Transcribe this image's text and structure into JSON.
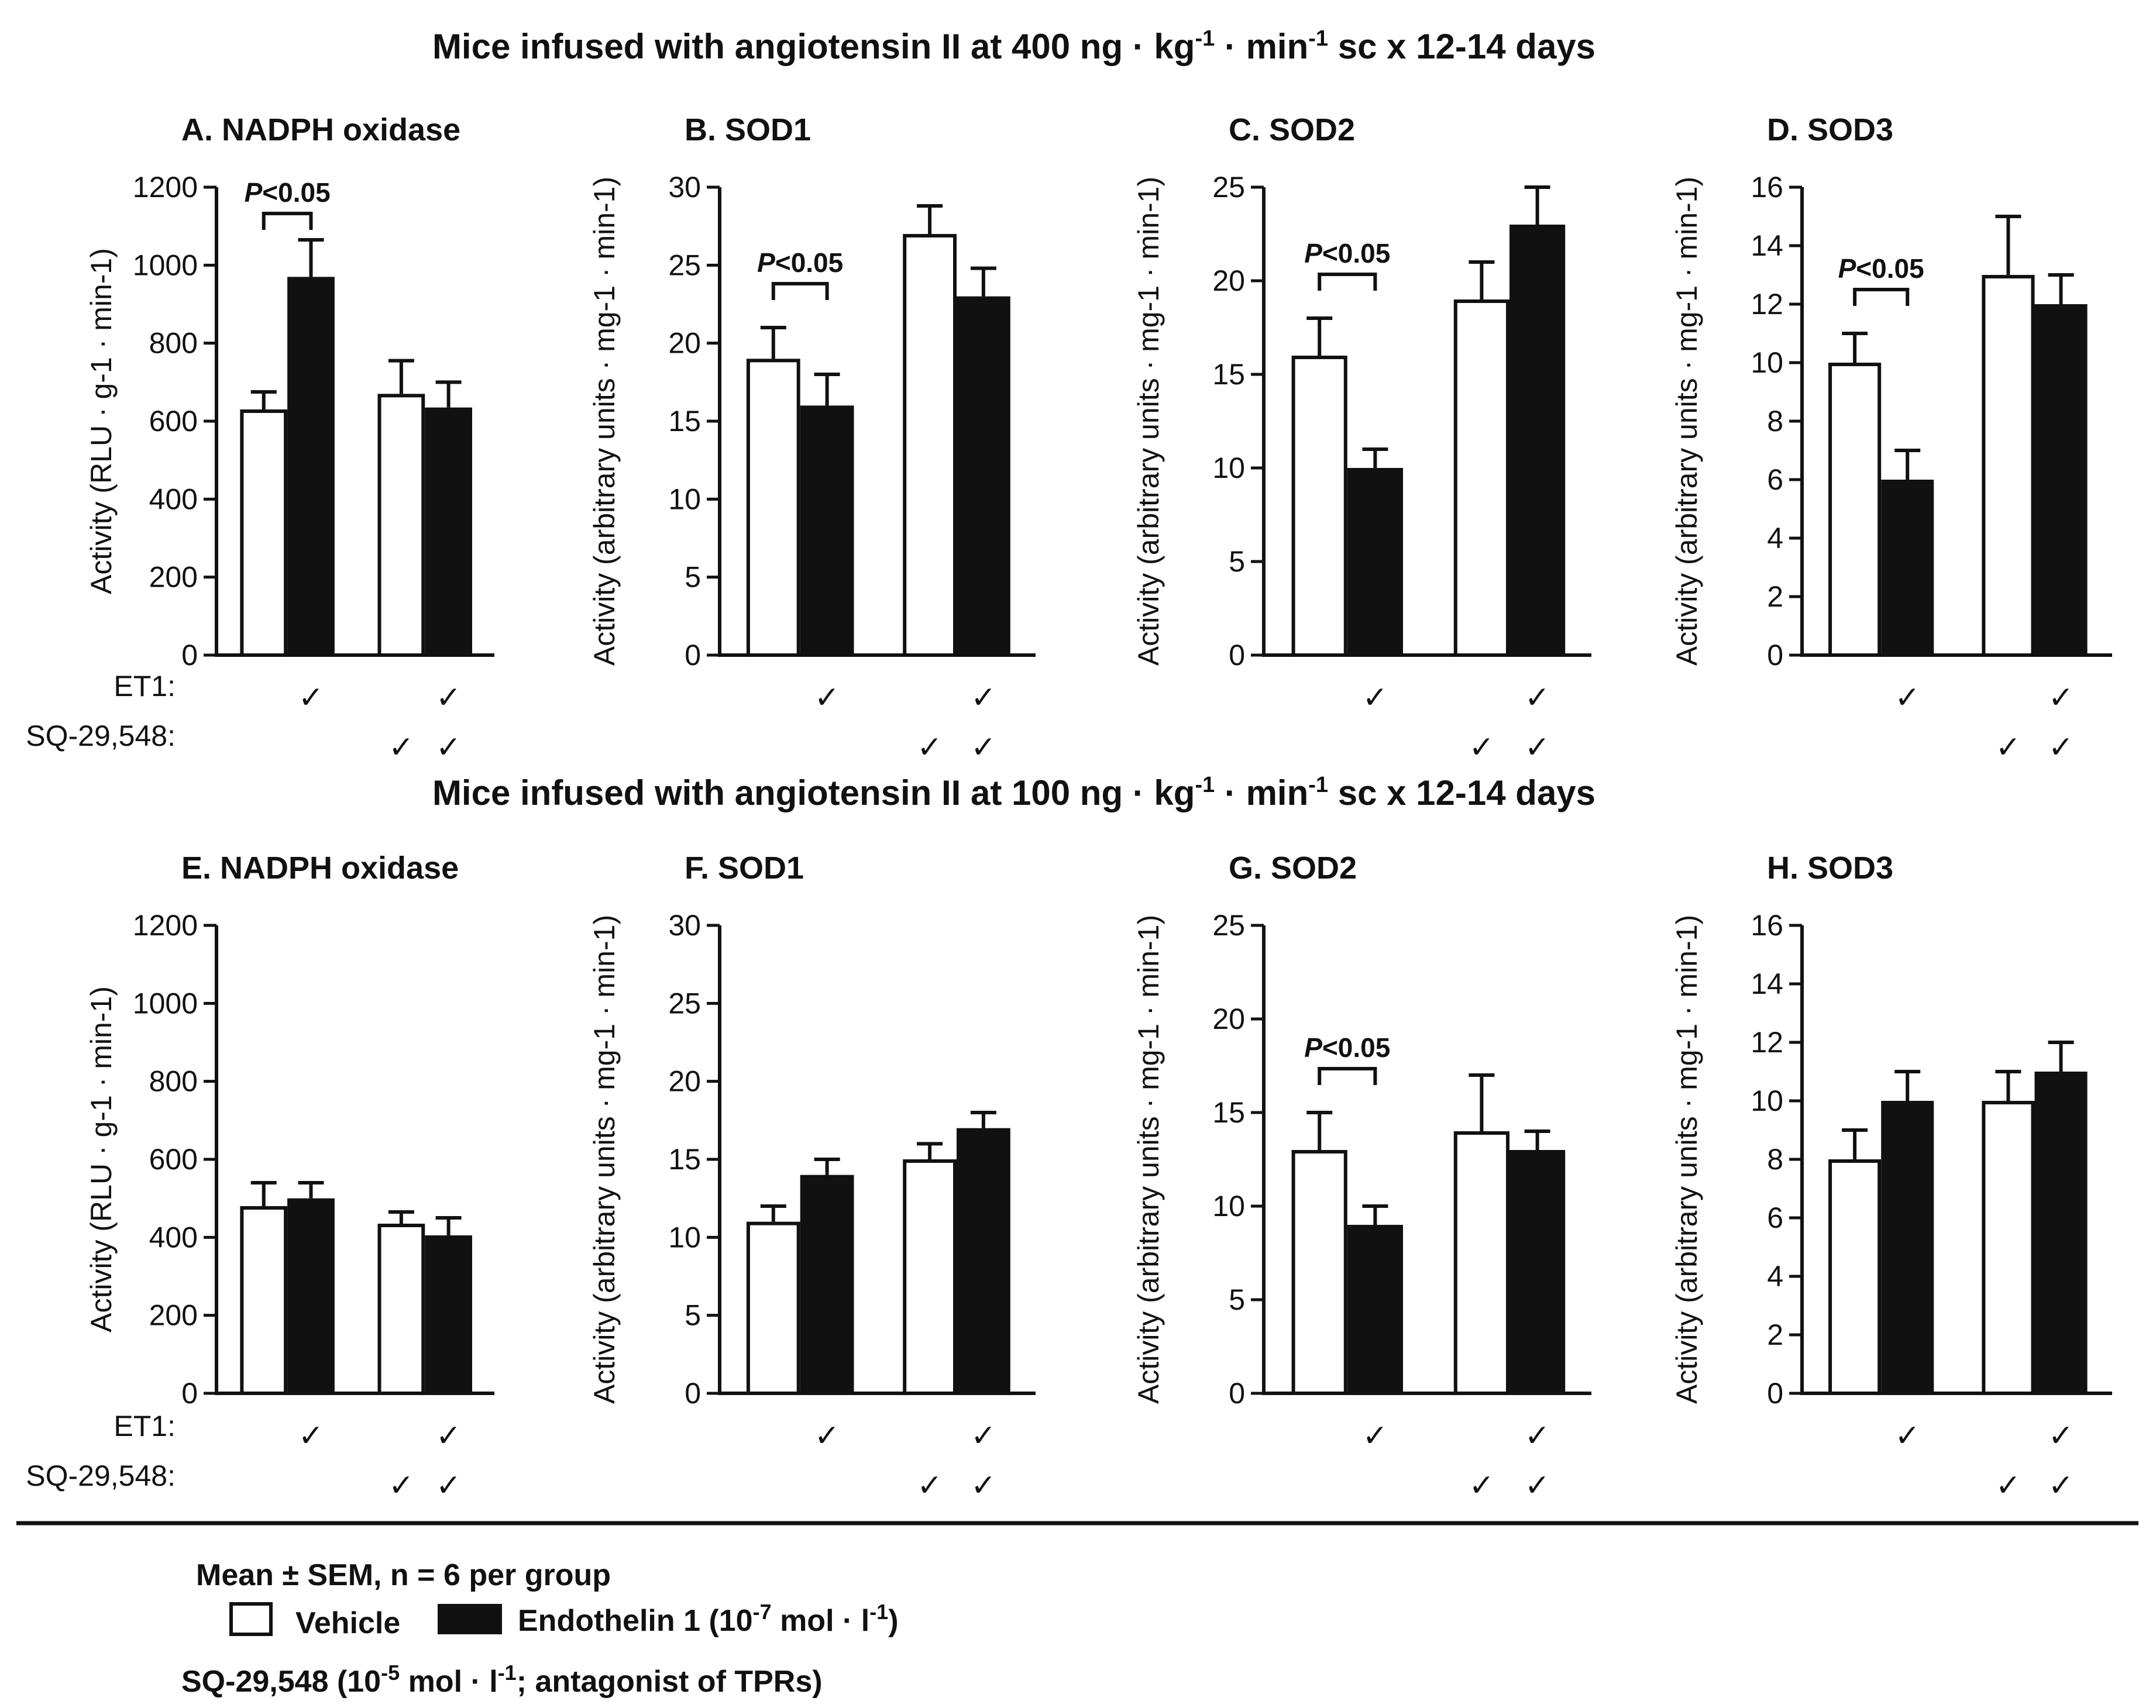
{
  "colors": {
    "vehicle": "#ffffff",
    "endothelin": "#111111",
    "axis": "#111111"
  },
  "row_titles": [
    {
      "prefix": "Mice infused with angiotensin II at 400 ng · kg",
      "mid": " · min",
      "suffix": " sc x 12-14 days",
      "sup": "-1"
    },
    {
      "prefix": "Mice infused with angiotensin II at 100 ng · kg",
      "mid": " · min",
      "suffix": " sc x 12-14 days",
      "sup": "-1"
    }
  ],
  "group_rows": {
    "et1_label": "ET1:",
    "sq_label": "SQ-29,548:",
    "check": "✓"
  },
  "chart_data": [
    {
      "type": "bar",
      "panel": "A",
      "title": "A. NADPH oxidase",
      "ylabel": "Activity (RLU · g-1 · min-1)",
      "ylim": [
        0,
        1200
      ],
      "yticks": [
        0,
        200,
        400,
        600,
        800,
        1000,
        1200
      ],
      "categories": [
        "Vehicle",
        "ET1",
        "SQ-29,548",
        "ET1 + SQ-29,548"
      ],
      "et1": [
        false,
        true,
        false,
        true
      ],
      "sq29548": [
        false,
        false,
        true,
        true
      ],
      "values": [
        630,
        970,
        670,
        635
      ],
      "sem": [
        45,
        95,
        85,
        65
      ],
      "significance": [
        {
          "between": [
            0,
            1
          ],
          "label": "P<0.05"
        }
      ]
    },
    {
      "type": "bar",
      "panel": "B",
      "title": "B. SOD1",
      "ylabel": "Activity (arbitrary units · mg-1 · min-1)",
      "ylim": [
        0,
        30
      ],
      "yticks": [
        0,
        5,
        10,
        15,
        20,
        25,
        30
      ],
      "categories": [
        "Vehicle",
        "ET1",
        "SQ-29,548",
        "ET1 + SQ-29,548"
      ],
      "et1": [
        false,
        true,
        false,
        true
      ],
      "sq29548": [
        false,
        false,
        true,
        true
      ],
      "values": [
        19,
        16,
        27,
        23
      ],
      "sem": [
        2,
        2,
        1.8,
        1.8
      ],
      "significance": [
        {
          "between": [
            0,
            1
          ],
          "label": "P<0.05"
        }
      ]
    },
    {
      "type": "bar",
      "panel": "C",
      "title": "C. SOD2",
      "ylabel": "Activity (arbitrary units · mg-1 · min-1)",
      "ylim": [
        0,
        25
      ],
      "yticks": [
        0,
        5,
        10,
        15,
        20,
        25
      ],
      "categories": [
        "Vehicle",
        "ET1",
        "SQ-29,548",
        "ET1 + SQ-29,548"
      ],
      "et1": [
        false,
        true,
        false,
        true
      ],
      "sq29548": [
        false,
        false,
        true,
        true
      ],
      "values": [
        16,
        10,
        19,
        23
      ],
      "sem": [
        2,
        1,
        2,
        2
      ],
      "significance": [
        {
          "between": [
            0,
            1
          ],
          "label": "P<0.05"
        }
      ]
    },
    {
      "type": "bar",
      "panel": "D",
      "title": "D. SOD3",
      "ylabel": "Activity (arbitrary units · mg-1 · min-1)",
      "ylim": [
        0,
        16
      ],
      "yticks": [
        0,
        2,
        4,
        6,
        8,
        10,
        12,
        14,
        16
      ],
      "categories": [
        "Vehicle",
        "ET1",
        "SQ-29,548",
        "ET1 + SQ-29,548"
      ],
      "et1": [
        false,
        true,
        false,
        true
      ],
      "sq29548": [
        false,
        false,
        true,
        true
      ],
      "values": [
        10,
        6,
        13,
        12
      ],
      "sem": [
        1,
        1,
        2,
        1
      ],
      "significance": [
        {
          "between": [
            0,
            1
          ],
          "label": "P<0.05"
        }
      ]
    },
    {
      "type": "bar",
      "panel": "E",
      "title": "E. NADPH oxidase",
      "ylabel": "Activity (RLU · g-1 · min-1)",
      "ylim": [
        0,
        1200
      ],
      "yticks": [
        0,
        200,
        400,
        600,
        800,
        1000,
        1200
      ],
      "categories": [
        "Vehicle",
        "ET1",
        "SQ-29,548",
        "ET1 + SQ-29,548"
      ],
      "et1": [
        false,
        true,
        false,
        true
      ],
      "sq29548": [
        false,
        false,
        true,
        true
      ],
      "values": [
        480,
        500,
        435,
        405
      ],
      "sem": [
        60,
        40,
        30,
        45
      ],
      "significance": []
    },
    {
      "type": "bar",
      "panel": "F",
      "title": "F. SOD1",
      "ylabel": "Activity (arbitrary units · mg-1 · min-1)",
      "ylim": [
        0,
        30
      ],
      "yticks": [
        0,
        5,
        10,
        15,
        20,
        25,
        30
      ],
      "categories": [
        "Vehicle",
        "ET1",
        "SQ-29,548",
        "ET1 + SQ-29,548"
      ],
      "et1": [
        false,
        true,
        false,
        true
      ],
      "sq29548": [
        false,
        false,
        true,
        true
      ],
      "values": [
        11,
        14,
        15,
        17
      ],
      "sem": [
        1,
        1,
        1,
        1
      ],
      "significance": []
    },
    {
      "type": "bar",
      "panel": "G",
      "title": "G. SOD2",
      "ylabel": "Activity (arbitrary units · mg-1 · min-1)",
      "ylim": [
        0,
        25
      ],
      "yticks": [
        0,
        5,
        10,
        15,
        20,
        25
      ],
      "categories": [
        "Vehicle",
        "ET1",
        "SQ-29,548",
        "ET1 + SQ-29,548"
      ],
      "et1": [
        false,
        true,
        false,
        true
      ],
      "sq29548": [
        false,
        false,
        true,
        true
      ],
      "values": [
        13,
        9,
        14,
        13
      ],
      "sem": [
        2,
        1,
        3,
        1
      ],
      "significance": [
        {
          "between": [
            0,
            1
          ],
          "label": "P<0.05"
        }
      ]
    },
    {
      "type": "bar",
      "panel": "H",
      "title": "H. SOD3",
      "ylabel": "Activity (arbitrary units · mg-1 · min-1)",
      "ylim": [
        0,
        16
      ],
      "yticks": [
        0,
        2,
        4,
        6,
        8,
        10,
        12,
        14,
        16
      ],
      "categories": [
        "Vehicle",
        "ET1",
        "SQ-29,548",
        "ET1 + SQ-29,548"
      ],
      "et1": [
        false,
        true,
        false,
        true
      ],
      "sq29548": [
        false,
        false,
        true,
        true
      ],
      "values": [
        8,
        10,
        10,
        11
      ],
      "sem": [
        1,
        1,
        1,
        1
      ],
      "significance": []
    }
  ],
  "legend": {
    "stats": "Mean ± SEM, n = 6 per group",
    "vehicle": "Vehicle",
    "endothelin": {
      "prefix": "Endothelin 1 (10",
      "exp": "-7",
      "mid": " mol · l",
      "exp2": "-1",
      "suffix": ")"
    },
    "sq": {
      "prefix": "SQ-29,548 (10",
      "exp": "-5",
      "mid": " mol · l",
      "exp2": "-1",
      "suffix": "; antagonist of TPRs)"
    }
  }
}
